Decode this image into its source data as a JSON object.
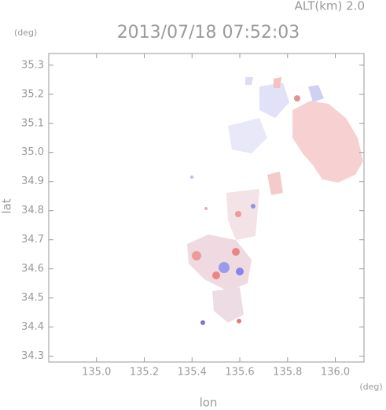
{
  "chart_data": {
    "type": "map",
    "title": "2013/07/18 07:52:03",
    "subtitle": "ALT(km) 2.0",
    "x_label": "lon",
    "x_unit": "(deg)",
    "y_label": "lat",
    "y_unit": "(deg)",
    "xlim": [
      134.8,
      136.12
    ],
    "ylim": [
      34.28,
      35.34
    ],
    "xticks": [
      {
        "value": 135,
        "label": "135.0"
      },
      135.2,
      135.4,
      135.6,
      135.8,
      {
        "value": 136,
        "label": "136.0"
      }
    ],
    "yticks": [
      34.3,
      34.4,
      34.5,
      34.6,
      34.7,
      34.8,
      34.9,
      {
        "value": 35,
        "label": "35.0"
      },
      35.1,
      35.2,
      35.3
    ],
    "grid": false
  }
}
